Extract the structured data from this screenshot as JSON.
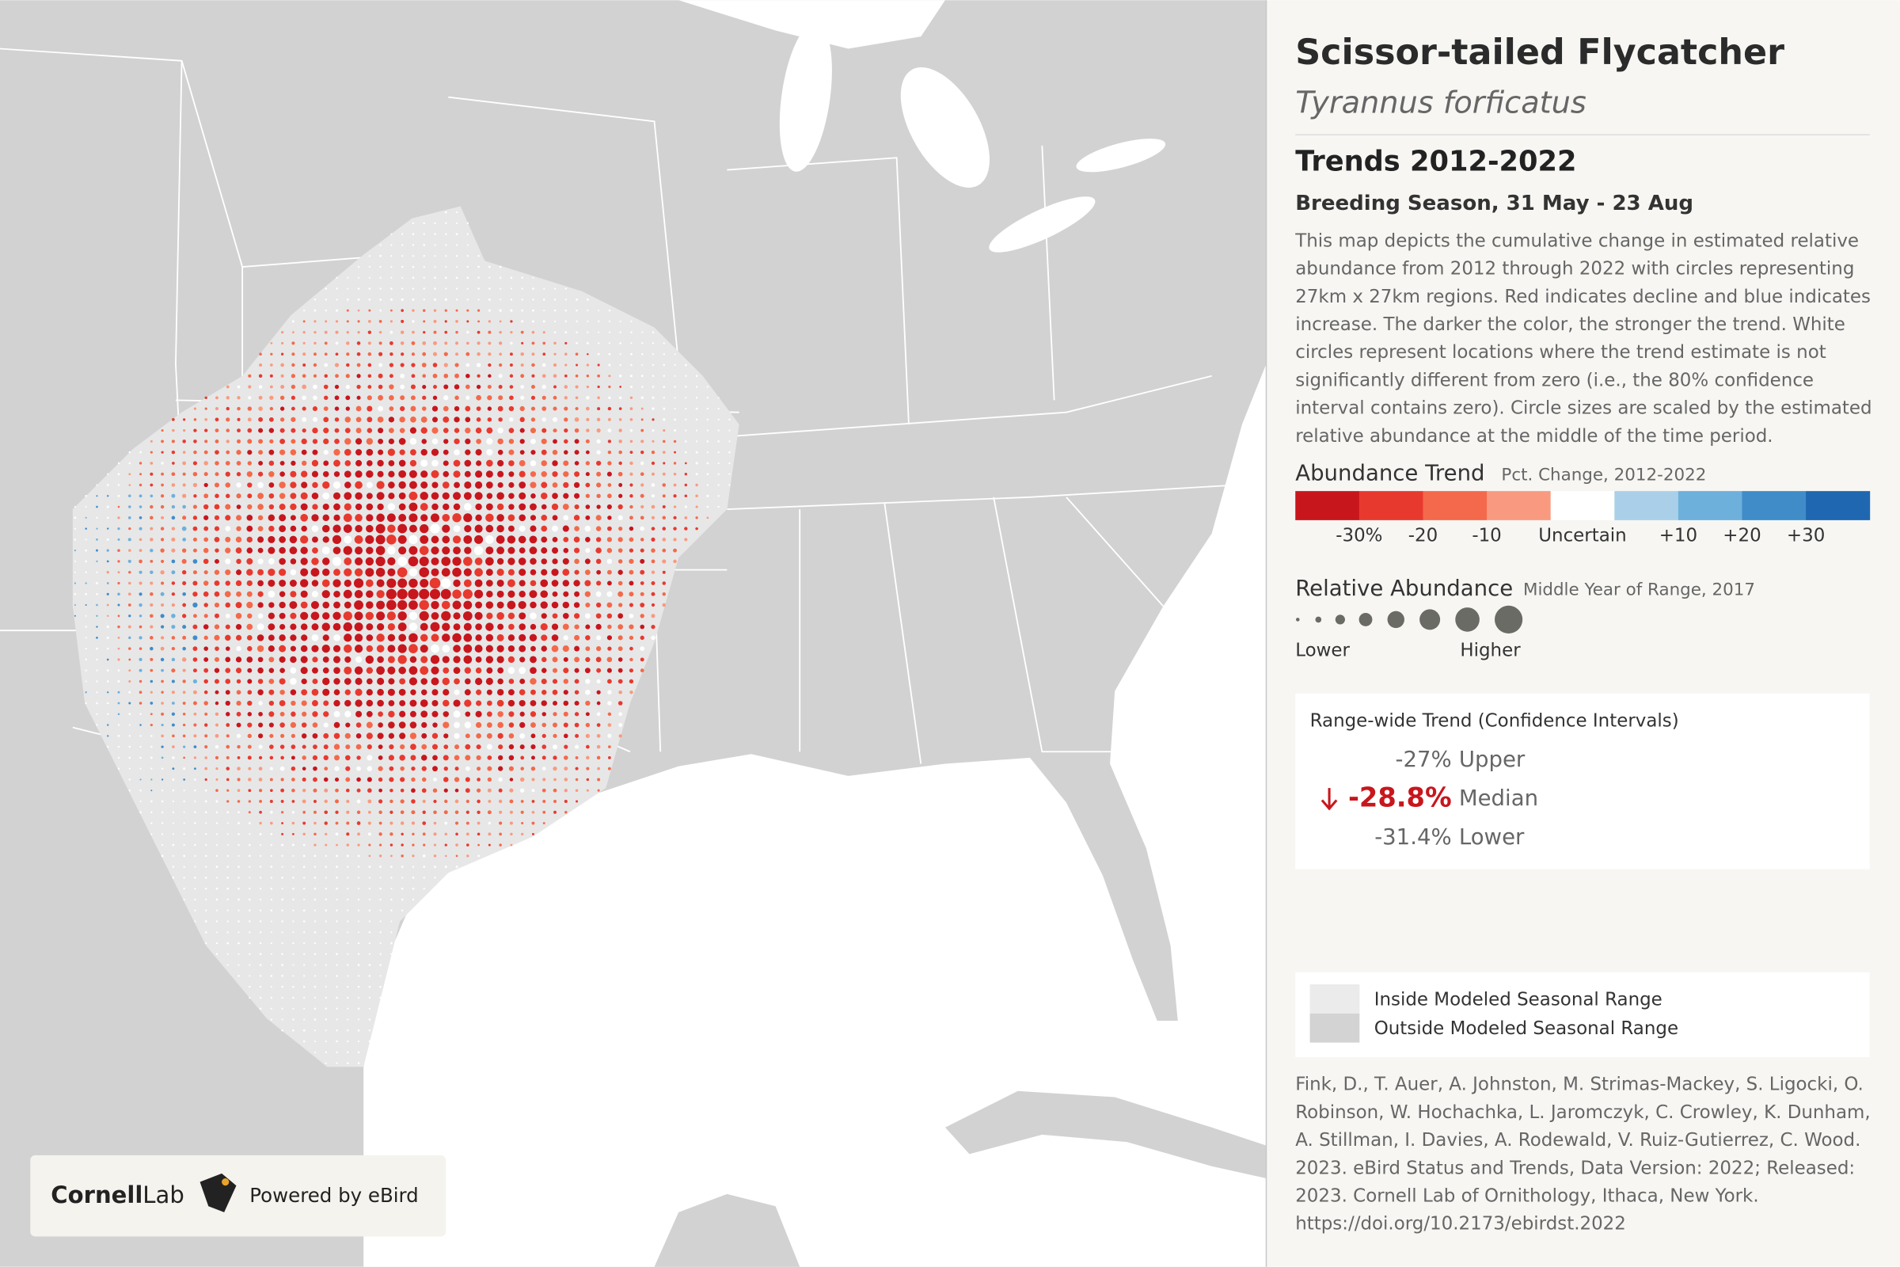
{
  "title": "Scissor-tailed Flycatcher",
  "subtitle": "Tyrannus forficatus",
  "trend_heading": "Trends 2012-2022",
  "season": "Breeding Season, 31 May - 23 Aug",
  "description_lines": [
    "This map depicts the cumulative change in estimated relative",
    "abundance from 2012 through 2022 with circles representing",
    "27km x 27km regions. Red indicates decline and blue indicates",
    "increase. The darker the color, the stronger the trend. White",
    "circles represent locations where the trend estimate is not",
    "significantly different from zero (i.e., the 80% confidence",
    "interval contains zero). Circle sizes are scaled by the estimated",
    "relative abundance at the middle of the time period."
  ],
  "abundance_trend": {
    "title": "Abundance Trend",
    "subtitle": "Pct. Change, 2012-2022",
    "colors": [
      "#c8161d",
      "#e8392f",
      "#f4694b",
      "#f99a80",
      "#ffffff",
      "#a9d0e8",
      "#6eb0dc",
      "#3f8cc9",
      "#1f67b1"
    ],
    "labels": [
      "-30%",
      "-20",
      "-10",
      "Uncertain",
      "+10",
      "+20",
      "+30"
    ]
  },
  "relative_abundance": {
    "title": "Relative Abundance",
    "subtitle": "Middle Year of Range, 2017",
    "low": "Lower",
    "high": "Higher"
  },
  "range_wide": {
    "title": "Range-wide Trend (Confidence Intervals)",
    "rows": [
      {
        "value": "-27%",
        "label": "Upper"
      },
      {
        "value": "-28.8%",
        "label": "Median"
      },
      {
        "value": "-31.4%",
        "label": "Lower"
      }
    ]
  },
  "range_legend": [
    "Inside Modeled Seasonal Range",
    "Outside Modeled Seasonal Range"
  ],
  "citation_lines": [
    "Fink, D., T. Auer, A. Johnston, M. Strimas-Mackey, S. Ligocki, O.",
    "Robinson, W. Hochachka, L. Jaromczyk, C. Crowley, K. Dunham,",
    "A. Stillman, I. Davies, A. Rodewald, V. Ruiz-Gutierrez, C. Wood.",
    "2023. eBird Status and Trends, Data Version: 2022; Released:",
    "2023. Cornell Lab of Ornithology, Ithaca, New York.",
    "https://doi.org/10.2173/ebirdst.2022"
  ],
  "footer": {
    "brand_bold": "Cornell",
    "brand_light": "Lab",
    "powered": "Powered by eBird"
  }
}
